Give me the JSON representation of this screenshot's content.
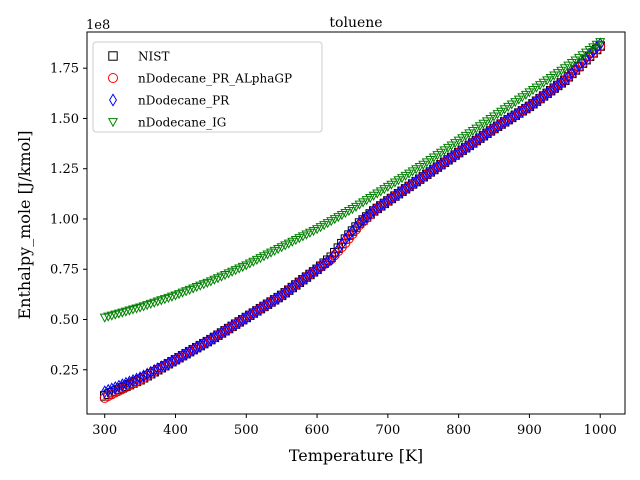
{
  "chart_data": {
    "type": "scatter",
    "title": "toluene",
    "xlabel": "Temperature [K]",
    "ylabel": "Enthalpy_mole [J/kmol]",
    "y_offset_text": "1e8",
    "y_scale_factor": 100000000,
    "xlim": [
      275,
      1035
    ],
    "ylim": [
      0.03,
      1.93
    ],
    "x_ticks": [
      300,
      400,
      500,
      600,
      700,
      800,
      900,
      1000
    ],
    "y_ticks": [
      0.25,
      0.5,
      0.75,
      1.0,
      1.25,
      1.5,
      1.75
    ],
    "x_tick_labels": [
      "300",
      "400",
      "500",
      "600",
      "700",
      "800",
      "900",
      "1000"
    ],
    "y_tick_labels": [
      "0.25",
      "0.50",
      "0.75",
      "1.00",
      "1.25",
      "1.50",
      "1.75"
    ],
    "grid": false,
    "legend_position": "top-left",
    "series": [
      {
        "name": "NIST",
        "marker": "square",
        "color": "#000000",
        "x": [
          300,
          350,
          400,
          450,
          500,
          550,
          600,
          620,
          640,
          660,
          680,
          700,
          750,
          800,
          850,
          900,
          950,
          1000
        ],
        "y": [
          0.12,
          0.2,
          0.3,
          0.4,
          0.51,
          0.62,
          0.75,
          0.81,
          0.9,
          0.98,
          1.04,
          1.09,
          1.21,
          1.33,
          1.45,
          1.56,
          1.69,
          1.86
        ]
      },
      {
        "name": "nDodecane_PR_ALphaGP",
        "marker": "circle",
        "color": "#ff0000",
        "x": [
          300,
          350,
          400,
          450,
          500,
          550,
          600,
          620,
          640,
          660,
          680,
          700,
          750,
          800,
          850,
          900,
          950,
          1000
        ],
        "y": [
          0.11,
          0.2,
          0.3,
          0.4,
          0.51,
          0.62,
          0.75,
          0.8,
          0.88,
          0.97,
          1.04,
          1.09,
          1.21,
          1.33,
          1.45,
          1.56,
          1.69,
          1.86
        ]
      },
      {
        "name": "nDodecane_PR",
        "marker": "diamond",
        "color": "#0000ff",
        "x": [
          300,
          350,
          400,
          450,
          500,
          550,
          600,
          620,
          640,
          660,
          680,
          700,
          750,
          800,
          850,
          900,
          950,
          1000
        ],
        "y": [
          0.14,
          0.21,
          0.3,
          0.4,
          0.51,
          0.62,
          0.75,
          0.8,
          0.9,
          0.98,
          1.04,
          1.09,
          1.21,
          1.33,
          1.45,
          1.56,
          1.69,
          1.87
        ]
      },
      {
        "name": "nDodecane_IG",
        "marker": "triangle-down",
        "color": "#008000",
        "x": [
          300,
          350,
          400,
          450,
          500,
          550,
          600,
          650,
          700,
          750,
          800,
          850,
          900,
          950,
          1000
        ],
        "y": [
          0.51,
          0.56,
          0.62,
          0.69,
          0.77,
          0.86,
          0.95,
          1.05,
          1.16,
          1.27,
          1.39,
          1.51,
          1.63,
          1.75,
          1.88
        ]
      }
    ]
  }
}
